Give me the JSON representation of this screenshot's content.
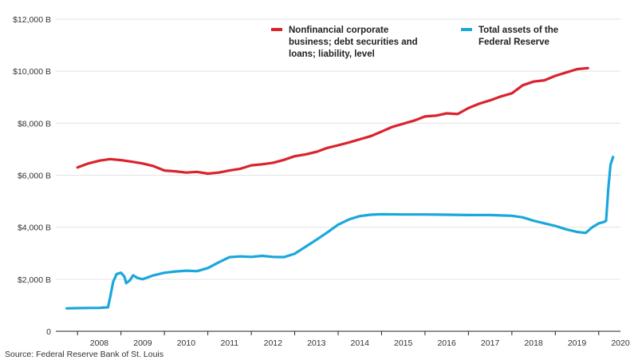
{
  "chart_data": {
    "type": "line",
    "title": "",
    "xlabel": "",
    "ylabel": "",
    "xlim": [
      2007.5,
      2020.5
    ],
    "ylim": [
      0,
      12000
    ],
    "y_ticks": [
      0,
      2000,
      4000,
      6000,
      8000,
      10000,
      12000
    ],
    "y_tick_labels": [
      "0",
      "$2,000 B",
      "$4,000 B",
      "$6,000 B",
      "$8,000 B",
      "$10,000 B",
      "$12,000 B"
    ],
    "x_tick_labels": [
      "2008",
      "2009",
      "2010",
      "2011",
      "2012",
      "2013",
      "2014",
      "2015",
      "2016",
      "2017",
      "2018",
      "2019",
      "2020"
    ],
    "series": [
      {
        "name": "Nonfinancial corporate business; debt securities and loans; liability, level",
        "legend_lines": [
          "Nonfinancial corporate",
          "business; debt securities and",
          "loans; liability, level"
        ],
        "color": "#d9232e",
        "points": [
          [
            2008.0,
            6300
          ],
          [
            2008.25,
            6450
          ],
          [
            2008.5,
            6560
          ],
          [
            2008.75,
            6620
          ],
          [
            2009.0,
            6580
          ],
          [
            2009.25,
            6520
          ],
          [
            2009.5,
            6450
          ],
          [
            2009.75,
            6350
          ],
          [
            2010.0,
            6180
          ],
          [
            2010.25,
            6150
          ],
          [
            2010.5,
            6100
          ],
          [
            2010.75,
            6130
          ],
          [
            2011.0,
            6060
          ],
          [
            2011.25,
            6100
          ],
          [
            2011.5,
            6180
          ],
          [
            2011.75,
            6250
          ],
          [
            2012.0,
            6380
          ],
          [
            2012.25,
            6420
          ],
          [
            2012.5,
            6480
          ],
          [
            2012.75,
            6590
          ],
          [
            2013.0,
            6730
          ],
          [
            2013.25,
            6800
          ],
          [
            2013.5,
            6900
          ],
          [
            2013.75,
            7050
          ],
          [
            2014.0,
            7150
          ],
          [
            2014.25,
            7260
          ],
          [
            2014.5,
            7380
          ],
          [
            2014.75,
            7500
          ],
          [
            2015.0,
            7680
          ],
          [
            2015.25,
            7860
          ],
          [
            2015.5,
            7980
          ],
          [
            2015.75,
            8100
          ],
          [
            2016.0,
            8260
          ],
          [
            2016.25,
            8290
          ],
          [
            2016.5,
            8380
          ],
          [
            2016.75,
            8350
          ],
          [
            2017.0,
            8580
          ],
          [
            2017.25,
            8750
          ],
          [
            2017.5,
            8880
          ],
          [
            2017.75,
            9030
          ],
          [
            2018.0,
            9150
          ],
          [
            2018.25,
            9460
          ],
          [
            2018.5,
            9600
          ],
          [
            2018.75,
            9650
          ],
          [
            2019.0,
            9820
          ],
          [
            2019.25,
            9950
          ],
          [
            2019.5,
            10080
          ],
          [
            2019.75,
            10120
          ]
        ]
      },
      {
        "name": "Total assets of the Federal Reserve",
        "legend_lines": [
          "Total assets of the",
          "Federal Reserve"
        ],
        "color": "#1aa7db",
        "points": [
          [
            2007.75,
            880
          ],
          [
            2008.0,
            890
          ],
          [
            2008.25,
            895
          ],
          [
            2008.5,
            900
          ],
          [
            2008.7,
            920
          ],
          [
            2008.75,
            1300
          ],
          [
            2008.82,
            1900
          ],
          [
            2008.9,
            2200
          ],
          [
            2009.0,
            2250
          ],
          [
            2009.08,
            2100
          ],
          [
            2009.12,
            1850
          ],
          [
            2009.2,
            1950
          ],
          [
            2009.28,
            2150
          ],
          [
            2009.38,
            2050
          ],
          [
            2009.5,
            2000
          ],
          [
            2009.75,
            2150
          ],
          [
            2010.0,
            2250
          ],
          [
            2010.25,
            2300
          ],
          [
            2010.5,
            2330
          ],
          [
            2010.75,
            2310
          ],
          [
            2011.0,
            2430
          ],
          [
            2011.25,
            2650
          ],
          [
            2011.5,
            2850
          ],
          [
            2011.75,
            2880
          ],
          [
            2012.0,
            2860
          ],
          [
            2012.25,
            2900
          ],
          [
            2012.5,
            2860
          ],
          [
            2012.75,
            2850
          ],
          [
            2013.0,
            2980
          ],
          [
            2013.25,
            3250
          ],
          [
            2013.5,
            3520
          ],
          [
            2013.75,
            3800
          ],
          [
            2014.0,
            4100
          ],
          [
            2014.25,
            4300
          ],
          [
            2014.5,
            4430
          ],
          [
            2014.75,
            4480
          ],
          [
            2015.0,
            4500
          ],
          [
            2015.5,
            4490
          ],
          [
            2016.0,
            4490
          ],
          [
            2016.5,
            4480
          ],
          [
            2017.0,
            4470
          ],
          [
            2017.5,
            4470
          ],
          [
            2018.0,
            4440
          ],
          [
            2018.25,
            4380
          ],
          [
            2018.5,
            4250
          ],
          [
            2018.75,
            4150
          ],
          [
            2019.0,
            4050
          ],
          [
            2019.25,
            3920
          ],
          [
            2019.5,
            3820
          ],
          [
            2019.7,
            3780
          ],
          [
            2019.85,
            4000
          ],
          [
            2020.0,
            4150
          ],
          [
            2020.12,
            4200
          ],
          [
            2020.17,
            4250
          ],
          [
            2020.22,
            5500
          ],
          [
            2020.27,
            6400
          ],
          [
            2020.33,
            6700
          ]
        ]
      }
    ],
    "source": "Source: Federal Reserve Bank of St. Louis"
  }
}
